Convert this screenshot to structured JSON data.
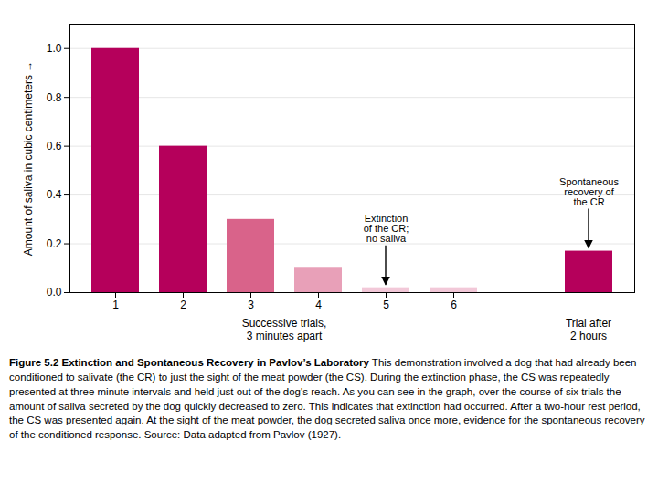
{
  "chart_data": {
    "type": "bar",
    "title": "Figure 5.2 Extinction and Spontaneous Recovery in Pavlov’s Laboratory",
    "caption": "This demonstration involved a dog that had already been conditioned to salivate (the CR) to just the sight of the meat powder (the CS). During the extinction phase, the CS was repeatedly presented at three minute intervals and held just out of the dog's reach. As you can see in the graph, over the course of six trials the amount of saliva secreted by the dog quickly decreased to zero. This indicates that extinction had occurred. After a two-hour rest period, the CS was presented again. At the sight of the meat powder, the dog secreted saliva once more, evidence for the spontaneous recovery of the conditioned response. Source: Data adapted from Pavlov (1927).",
    "categories": [
      "1",
      "2",
      "3",
      "4",
      "5",
      "6",
      null
    ],
    "values": [
      1.0,
      0.6,
      0.3,
      0.1,
      0.02,
      0.02,
      0.17
    ],
    "colors": [
      "#b5005b",
      "#b5005b",
      "#d9638a",
      "#e8a0b8",
      "#f2c8d8",
      "#f2c8d8",
      "#b5005b"
    ],
    "annotations": [
      null,
      null,
      null,
      null,
      "Extinction\nof the CR;\nno saliva",
      null,
      "Spontaneous\nrecovery of\nthe CR"
    ],
    "ylabel": "Amount of saliva in cubic centimeters",
    "xlabel": "Successive trials,\n3 minutes apart",
    "xlabel_right": "Trial after\n2 hours",
    "ylim": [
      0,
      1.1
    ],
    "yticks": [
      {
        "value": 0,
        "label": "0.0"
      },
      0.2,
      0.4,
      0.6,
      0.8,
      {
        "value": 1,
        "label": "1.0"
      }
    ],
    "grid": true
  }
}
